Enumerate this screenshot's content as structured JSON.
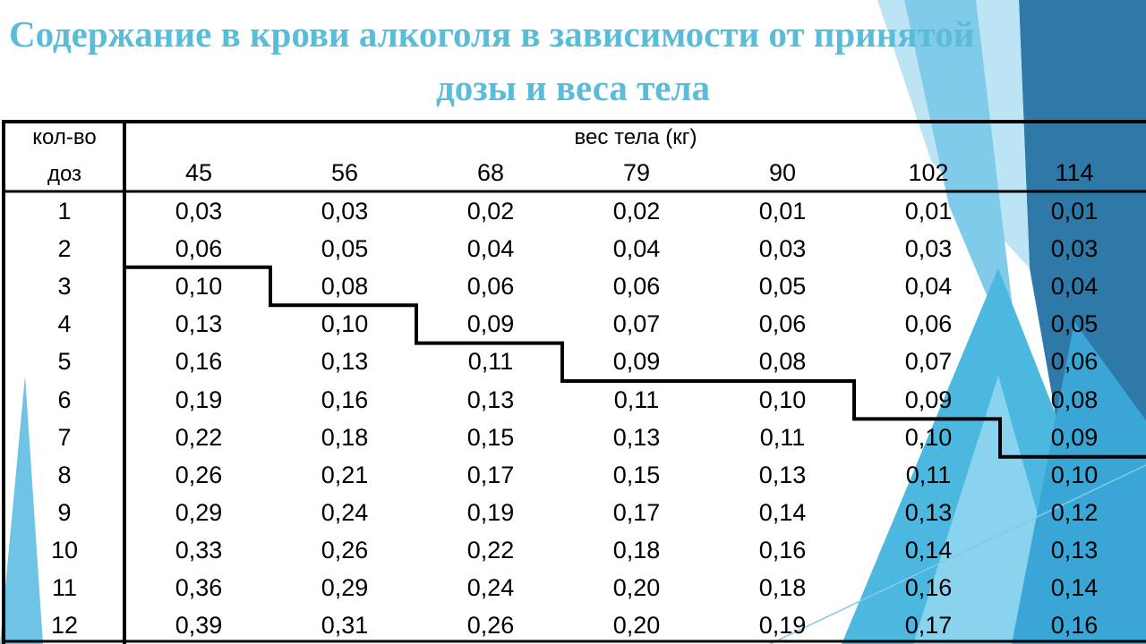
{
  "title": {
    "line1": "Содержание в крови  алкоголя в зависимости от принятой",
    "line2": "дозы  и веса тела"
  },
  "table": {
    "row_header_line1": "кол-во",
    "row_header_line2": "доз",
    "column_group_header": "вес тела (кг)",
    "columns": [
      "45",
      "56",
      "68",
      "79",
      "90",
      "102",
      "114"
    ],
    "rows": [
      {
        "doses": "1",
        "values": [
          "0,03",
          "0,03",
          "0,02",
          "0,02",
          "0,01",
          "0,01",
          "0,01"
        ]
      },
      {
        "doses": "2",
        "values": [
          "0,06",
          "0,05",
          "0,04",
          "0,04",
          "0,03",
          "0,03",
          "0,03"
        ]
      },
      {
        "doses": "3",
        "values": [
          "0,10",
          "0,08",
          "0,06",
          "0,06",
          "0,05",
          "0,04",
          "0,04"
        ]
      },
      {
        "doses": "4",
        "values": [
          "0,13",
          "0,10",
          "0,09",
          "0,07",
          "0,06",
          "0,06",
          "0,05"
        ]
      },
      {
        "doses": "5",
        "values": [
          "0,16",
          "0,13",
          "0,11",
          "0,09",
          "0,08",
          "0,07",
          "0,06"
        ]
      },
      {
        "doses": "6",
        "values": [
          "0,19",
          "0,16",
          "0,13",
          "0,11",
          "0,10",
          "0,09",
          "0,08"
        ]
      },
      {
        "doses": "7",
        "values": [
          "0,22",
          "0,18",
          "0,15",
          "0,13",
          "0,11",
          "0,10",
          "0,09"
        ]
      },
      {
        "doses": "8",
        "values": [
          "0,26",
          "0,21",
          "0,17",
          "0,15",
          "0,13",
          "0,11",
          "0,10"
        ]
      },
      {
        "doses": "9",
        "values": [
          "0,29",
          "0,24",
          "0,19",
          "0,17",
          "0,14",
          "0,13",
          "0,12"
        ]
      },
      {
        "doses": "10",
        "values": [
          "0,33",
          "0,26",
          "0,22",
          "0,18",
          "0,16",
          "0,14",
          "0,13"
        ]
      },
      {
        "doses": "11",
        "values": [
          "0,36",
          "0,29",
          "0,24",
          "0,20",
          "0,18",
          "0,16",
          "0,14"
        ]
      },
      {
        "doses": "12",
        "values": [
          "0,39",
          "0,31",
          "0,26",
          "0,20",
          "0,19",
          "0,17",
          "0,16"
        ]
      }
    ],
    "threshold_first_row_per_column": [
      3,
      4,
      5,
      6,
      6,
      7,
      8
    ]
  },
  "colors": {
    "title": "#5bbcd8",
    "border": "#000000",
    "decor_light": "#a9dcf0",
    "decor_mid": "#4cb8e0",
    "decor_dark": "#2f79a8"
  }
}
